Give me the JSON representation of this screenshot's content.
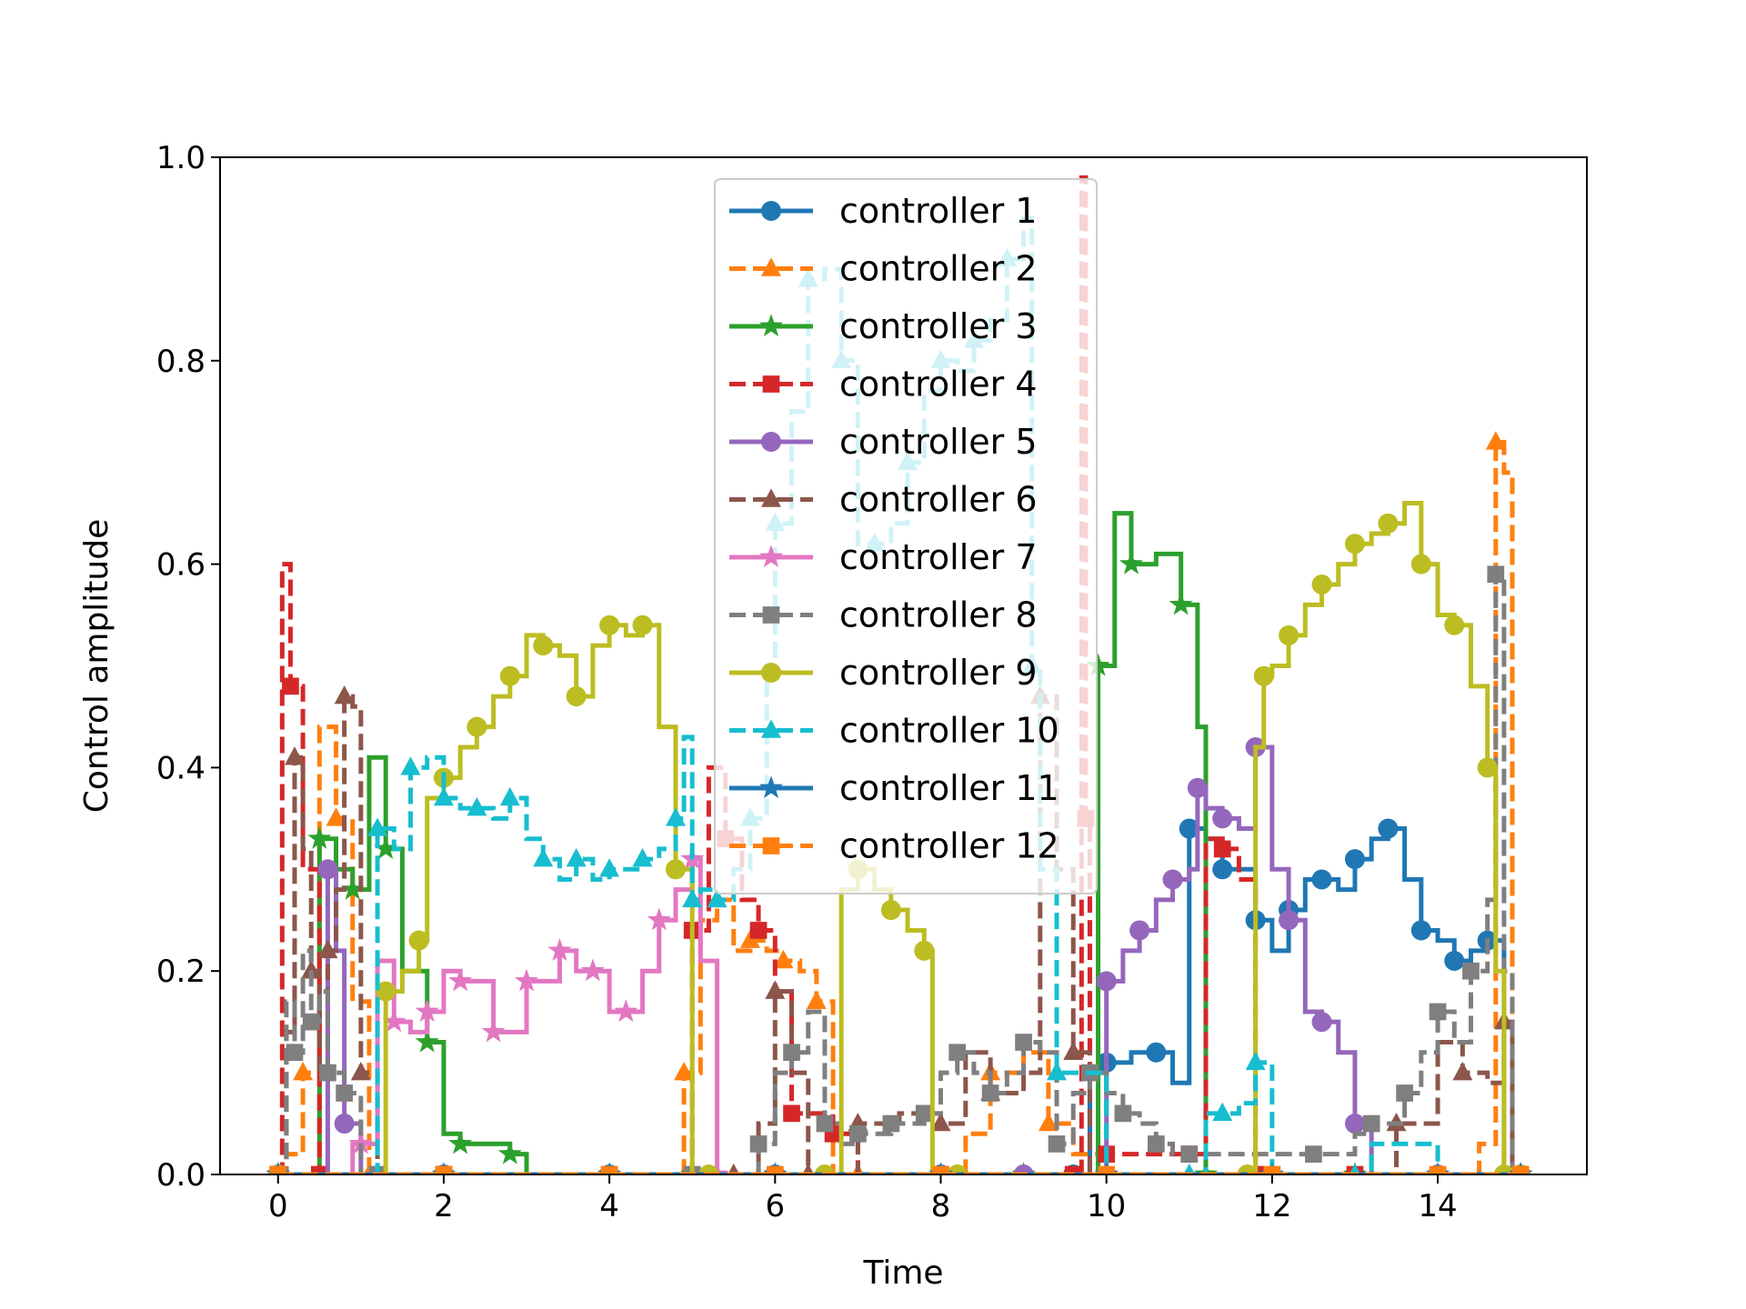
{
  "chart_data": {
    "type": "line",
    "title": "",
    "xlabel": "Time",
    "ylabel": "Control amplitude",
    "xlim": [
      -0.7,
      15.8
    ],
    "ylim": [
      0.0,
      1.0
    ],
    "xticks": [
      0,
      2,
      4,
      6,
      8,
      10,
      12,
      14
    ],
    "yticks": [
      0.0,
      0.2,
      0.4,
      0.6,
      0.8,
      1.0
    ],
    "xtick_labels": [
      "0",
      "2",
      "4",
      "6",
      "8",
      "10",
      "12",
      "14"
    ],
    "ytick_labels": [
      "0.0",
      "0.2",
      "0.4",
      "0.6",
      "0.8",
      "1.0"
    ],
    "grid": false,
    "legend_position": "top-center",
    "step": true,
    "series": [
      {
        "name": "controller 1",
        "color": "#1f77b4",
        "dash": false,
        "marker": "circle",
        "x": [
          0,
          1,
          2,
          3,
          4,
          5,
          6,
          7,
          8,
          9,
          9.6,
          9.8,
          10,
          10.3,
          10.6,
          10.8,
          11,
          11.2,
          11.4,
          11.6,
          11.8,
          12.0,
          12.2,
          12.4,
          12.6,
          12.8,
          13.0,
          13.2,
          13.4,
          13.6,
          13.8,
          14.0,
          14.2,
          14.4,
          14.6,
          14.8,
          15.0
        ],
        "y": [
          0.0,
          0.0,
          0.0,
          0.0,
          0.0,
          0.0,
          0.0,
          0.0,
          0.0,
          0.0,
          0.0,
          0.1,
          0.11,
          0.12,
          0.12,
          0.09,
          0.34,
          0.33,
          0.3,
          0.3,
          0.25,
          0.22,
          0.26,
          0.29,
          0.29,
          0.28,
          0.31,
          0.33,
          0.34,
          0.29,
          0.24,
          0.23,
          0.21,
          0.22,
          0.23,
          0.0,
          0.0
        ]
      },
      {
        "name": "controller 2",
        "color": "#ff7f0e",
        "dash": true,
        "marker": "triangle",
        "x": [
          0,
          0.1,
          0.3,
          0.5,
          0.7,
          0.9,
          1.1,
          1.5,
          2,
          3,
          4,
          4.8,
          4.9,
          5.1,
          5.3,
          5.5,
          5.7,
          5.9,
          6.1,
          6.3,
          6.5,
          6.7,
          7,
          7.5,
          8,
          8.3,
          8.6,
          9,
          9.3,
          9.6,
          10,
          11,
          12,
          13,
          14,
          14.5,
          14.7,
          14.8,
          14.9
        ],
        "y": [
          0.0,
          0.02,
          0.1,
          0.44,
          0.35,
          0.17,
          0.0,
          0.0,
          0.0,
          0.0,
          0.0,
          0.0,
          0.1,
          0.25,
          0.27,
          0.22,
          0.23,
          0.22,
          0.21,
          0.2,
          0.17,
          0.0,
          0.0,
          0.0,
          0.0,
          0.04,
          0.1,
          0.12,
          0.05,
          0.02,
          0.0,
          0.0,
          0.0,
          0.0,
          0.0,
          0.03,
          0.72,
          0.69,
          0.0
        ]
      },
      {
        "name": "controller 3",
        "color": "#2ca02c",
        "dash": false,
        "marker": "star",
        "x": [
          0,
          0.3,
          0.5,
          0.7,
          0.9,
          1.1,
          1.3,
          1.5,
          1.8,
          2.0,
          2.2,
          2.5,
          2.8,
          3,
          5,
          8,
          9,
          9.7,
          9.9,
          10.1,
          10.3,
          10.6,
          10.9,
          11.1,
          11.2,
          12,
          13,
          14,
          15
        ],
        "y": [
          0.0,
          0.0,
          0.33,
          0.3,
          0.28,
          0.41,
          0.32,
          0.2,
          0.13,
          0.04,
          0.03,
          0.03,
          0.02,
          0.0,
          0.0,
          0.0,
          0.0,
          0.0,
          0.5,
          0.65,
          0.6,
          0.61,
          0.56,
          0.44,
          0.0,
          0.0,
          0.0,
          0.0,
          0.0
        ]
      },
      {
        "name": "controller 4",
        "color": "#d62728",
        "dash": true,
        "marker": "square",
        "x": [
          0,
          0.05,
          0.15,
          0.3,
          0.5,
          1,
          2,
          3,
          4,
          4.9,
          5.0,
          5.2,
          5.4,
          5.6,
          5.8,
          6.0,
          6.2,
          6.4,
          6.7,
          7,
          8,
          9,
          9.6,
          9.7,
          9.75,
          9.8,
          10,
          10.5,
          11,
          11.2,
          11.4,
          11.6,
          11.8,
          12,
          13,
          14,
          15
        ],
        "y": [
          0.0,
          0.6,
          0.48,
          0.3,
          0.0,
          0.0,
          0.0,
          0.0,
          0.0,
          0.0,
          0.24,
          0.4,
          0.33,
          0.27,
          0.24,
          0.18,
          0.06,
          0.06,
          0.04,
          0.0,
          0.0,
          0.0,
          0.0,
          0.98,
          0.35,
          0.0,
          0.02,
          0.02,
          0.02,
          0.33,
          0.32,
          0.29,
          0.0,
          0.0,
          0.0,
          0.0,
          0.0
        ]
      },
      {
        "name": "controller 5",
        "color": "#9467bd",
        "dash": false,
        "marker": "circle",
        "x": [
          0,
          0.5,
          0.6,
          0.7,
          0.8,
          1,
          2,
          5,
          9,
          9.9,
          10.0,
          10.2,
          10.4,
          10.6,
          10.8,
          11.0,
          11.1,
          11.2,
          11.4,
          11.6,
          11.8,
          12.0,
          12.2,
          12.4,
          12.6,
          12.8,
          13.0,
          13.2,
          14,
          15
        ],
        "y": [
          0.0,
          0.0,
          0.3,
          0.22,
          0.05,
          0.0,
          0.0,
          0.0,
          0.0,
          0.0,
          0.19,
          0.22,
          0.24,
          0.27,
          0.29,
          0.3,
          0.38,
          0.36,
          0.35,
          0.34,
          0.42,
          0.3,
          0.25,
          0.16,
          0.15,
          0.12,
          0.05,
          0.0,
          0.0,
          0.0
        ]
      },
      {
        "name": "controller 6",
        "color": "#8c564b",
        "dash": true,
        "marker": "triangle",
        "x": [
          0,
          0.1,
          0.2,
          0.3,
          0.4,
          0.5,
          0.6,
          0.7,
          0.8,
          0.9,
          1.0,
          1.2,
          2,
          5,
          5.5,
          5.8,
          6.0,
          6.2,
          6.4,
          6.6,
          7,
          7.5,
          8,
          8.3,
          8.6,
          9,
          9.2,
          9.4,
          9.6,
          9.8,
          10,
          11,
          12,
          13,
          13.5,
          14,
          14.3,
          14.6,
          14.8,
          14.9
        ],
        "y": [
          0.0,
          0.14,
          0.41,
          0.32,
          0.2,
          0.1,
          0.22,
          0.28,
          0.47,
          0.46,
          0.1,
          0.0,
          0.0,
          0.0,
          0.0,
          0.05,
          0.18,
          0.1,
          0.0,
          0.0,
          0.05,
          0.06,
          0.05,
          0.12,
          0.08,
          0.1,
          0.47,
          0.3,
          0.12,
          0.0,
          0.0,
          0.0,
          0.0,
          0.0,
          0.05,
          0.13,
          0.1,
          0.09,
          0.15,
          0.0
        ]
      },
      {
        "name": "controller 7",
        "color": "#e377c2",
        "dash": false,
        "marker": "star",
        "x": [
          0,
          0.9,
          1.0,
          1.2,
          1.4,
          1.6,
          1.8,
          2.0,
          2.2,
          2.4,
          2.6,
          2.8,
          3.0,
          3.2,
          3.4,
          3.6,
          3.8,
          4.0,
          4.2,
          4.4,
          4.6,
          4.8,
          5.0,
          5.1,
          5.3,
          6,
          10,
          15
        ],
        "y": [
          0.0,
          0.03,
          0.03,
          0.21,
          0.15,
          0.14,
          0.16,
          0.2,
          0.19,
          0.19,
          0.14,
          0.14,
          0.19,
          0.19,
          0.22,
          0.2,
          0.2,
          0.16,
          0.16,
          0.2,
          0.25,
          0.28,
          0.31,
          0.21,
          0.0,
          0.0,
          0.0,
          0.0
        ]
      },
      {
        "name": "controller 8",
        "color": "#7f7f7f",
        "dash": true,
        "marker": "square",
        "x": [
          0,
          0.1,
          0.2,
          0.3,
          0.4,
          0.5,
          0.6,
          0.7,
          0.8,
          1.0,
          1.2,
          2,
          5,
          5.5,
          5.8,
          6.0,
          6.2,
          6.4,
          6.6,
          6.8,
          7.0,
          7.2,
          7.4,
          7.6,
          7.8,
          8.0,
          8.2,
          8.4,
          8.6,
          8.8,
          9.0,
          9.2,
          9.4,
          9.6,
          9.8,
          10.0,
          10.2,
          10.4,
          10.6,
          10.8,
          11,
          12,
          12.5,
          13.0,
          13.2,
          13.4,
          13.6,
          13.8,
          14.0,
          14.2,
          14.4,
          14.6,
          14.7,
          14.8,
          14.9
        ],
        "y": [
          0.0,
          0.17,
          0.12,
          0.22,
          0.15,
          0.18,
          0.1,
          0.1,
          0.08,
          0.0,
          0.0,
          0.0,
          0.0,
          0.0,
          0.03,
          0.1,
          0.12,
          0.16,
          0.05,
          0.03,
          0.04,
          0.04,
          0.05,
          0.05,
          0.06,
          0.1,
          0.12,
          0.1,
          0.08,
          0.1,
          0.13,
          0.12,
          0.03,
          0.08,
          0.1,
          0.08,
          0.06,
          0.05,
          0.03,
          0.02,
          0.02,
          0.02,
          0.02,
          0.04,
          0.05,
          0.05,
          0.08,
          0.12,
          0.16,
          0.13,
          0.2,
          0.27,
          0.59,
          0.2,
          0.0
        ]
      },
      {
        "name": "controller 9",
        "color": "#bcbd22",
        "dash": false,
        "marker": "circle",
        "x": [
          0,
          1.2,
          1.3,
          1.5,
          1.7,
          1.8,
          2.0,
          2.2,
          2.4,
          2.6,
          2.8,
          3.0,
          3.2,
          3.4,
          3.6,
          3.8,
          4.0,
          4.2,
          4.4,
          4.6,
          4.8,
          5.0,
          5.2,
          6,
          6.6,
          6.8,
          7.0,
          7.2,
          7.4,
          7.6,
          7.8,
          7.9,
          8.2,
          9,
          11.7,
          11.8,
          11.9,
          12.0,
          12.2,
          12.4,
          12.6,
          12.8,
          13.0,
          13.2,
          13.4,
          13.6,
          13.8,
          14.0,
          14.2,
          14.4,
          14.6,
          14.7,
          14.8,
          15
        ],
        "y": [
          0.0,
          0.0,
          0.18,
          0.2,
          0.23,
          0.37,
          0.39,
          0.42,
          0.44,
          0.47,
          0.49,
          0.53,
          0.52,
          0.51,
          0.47,
          0.52,
          0.54,
          0.53,
          0.54,
          0.44,
          0.3,
          0.0,
          0.0,
          0.0,
          0.0,
          0.28,
          0.3,
          0.28,
          0.26,
          0.24,
          0.22,
          0.0,
          0.0,
          0.0,
          0.0,
          0.42,
          0.49,
          0.5,
          0.53,
          0.56,
          0.58,
          0.6,
          0.62,
          0.63,
          0.64,
          0.66,
          0.6,
          0.55,
          0.54,
          0.48,
          0.4,
          0.2,
          0.0,
          0.0
        ]
      },
      {
        "name": "controller 10",
        "color": "#17becf",
        "dash": true,
        "marker": "triangle",
        "x": [
          0,
          1.0,
          1.2,
          1.4,
          1.6,
          1.8,
          2.0,
          2.2,
          2.4,
          2.6,
          2.8,
          3.0,
          3.2,
          3.4,
          3.6,
          3.8,
          4.0,
          4.2,
          4.4,
          4.6,
          4.8,
          4.9,
          5.0,
          5.1,
          5.3,
          5.5,
          5.7,
          5.9,
          6.0,
          6.2,
          6.4,
          6.6,
          6.8,
          7.0,
          7.2,
          7.4,
          7.6,
          7.8,
          8.0,
          8.2,
          8.4,
          8.6,
          8.8,
          9.0,
          9.1,
          9.2,
          9.4,
          10,
          11,
          11.2,
          11.4,
          11.6,
          11.8,
          12,
          13,
          13.2,
          14,
          15
        ],
        "y": [
          0.0,
          0.0,
          0.34,
          0.32,
          0.4,
          0.41,
          0.37,
          0.36,
          0.36,
          0.35,
          0.37,
          0.33,
          0.31,
          0.29,
          0.31,
          0.29,
          0.3,
          0.3,
          0.31,
          0.32,
          0.35,
          0.43,
          0.27,
          0.28,
          0.27,
          0.3,
          0.35,
          0.5,
          0.64,
          0.75,
          0.88,
          0.89,
          0.8,
          0.62,
          0.62,
          0.64,
          0.7,
          0.77,
          0.8,
          0.79,
          0.82,
          0.84,
          0.9,
          0.94,
          0.5,
          0.3,
          0.1,
          0.0,
          0.0,
          0.06,
          0.06,
          0.07,
          0.11,
          0.0,
          0.0,
          0.03,
          0.0,
          0.0
        ]
      },
      {
        "name": "controller 11",
        "color": "#1f77b4",
        "dash": false,
        "marker": "star",
        "x": [
          0,
          1,
          2,
          3,
          4,
          5,
          6,
          7,
          8,
          9,
          10,
          11,
          12,
          13,
          14,
          15
        ],
        "y": [
          0.0,
          0.0,
          0.0,
          0.0,
          0.0,
          0.0,
          0.0,
          0.0,
          0.0,
          0.0,
          0.0,
          0.0,
          0.0,
          0.0,
          0.0,
          0.0
        ]
      },
      {
        "name": "controller 12",
        "color": "#ff7f0e",
        "dash": true,
        "marker": "square",
        "x": [
          0,
          1,
          2,
          3,
          4,
          5,
          6,
          7,
          8,
          9,
          10,
          11,
          12,
          13,
          14,
          15
        ],
        "y": [
          0.0,
          0.0,
          0.0,
          0.0,
          0.0,
          0.0,
          0.0,
          0.0,
          0.0,
          0.0,
          0.0,
          0.0,
          0.0,
          0.0,
          0.0,
          0.0
        ]
      }
    ]
  }
}
